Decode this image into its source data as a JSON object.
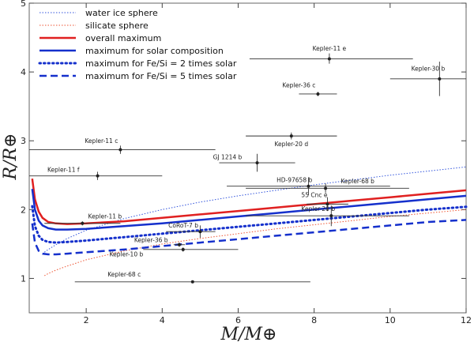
{
  "chart_data": {
    "type": "scatter",
    "title": "",
    "xlabel": "M/M⊕",
    "ylabel": "R/R⊕",
    "xlim": [
      0.5,
      12
    ],
    "ylim": [
      0.5,
      5
    ],
    "xticks": [
      2,
      4,
      6,
      8,
      10,
      12
    ],
    "yticks": [
      1,
      2,
      3,
      4,
      5
    ],
    "legend_position": "top-left",
    "legend": [
      {
        "label": "water ice sphere",
        "color": "#3355dd",
        "style": "dotted-thin",
        "width": 1
      },
      {
        "label": "silicate sphere",
        "color": "#ee5533",
        "style": "dotted-thin",
        "width": 1
      },
      {
        "label": "overall maximum",
        "color": "#e02020",
        "style": "solid",
        "width": 2.5
      },
      {
        "label": "maximum for solar composition",
        "color": "#1530cc",
        "style": "solid",
        "width": 2.5
      },
      {
        "label": "maximum for Fe/Si =  2 times solar",
        "color": "#1530cc",
        "style": "dotted-thick",
        "width": 3
      },
      {
        "label": "maximum for Fe/Si =  5 times solar",
        "color": "#1530cc",
        "style": "dashed",
        "width": 2.5
      }
    ],
    "series": [
      {
        "name": "water ice sphere",
        "x": [
          0.9,
          1.0,
          1.2,
          1.5,
          2,
          3,
          4,
          5,
          6,
          7,
          8,
          9,
          10,
          11,
          12
        ],
        "y": [
          1.38,
          1.42,
          1.49,
          1.58,
          1.7,
          1.87,
          2.0,
          2.11,
          2.2,
          2.28,
          2.36,
          2.43,
          2.5,
          2.56,
          2.62
        ]
      },
      {
        "name": "silicate sphere",
        "x": [
          0.9,
          1.0,
          1.2,
          1.5,
          2,
          3,
          4,
          5,
          6,
          7,
          8,
          9,
          10,
          11,
          12
        ],
        "y": [
          1.04,
          1.07,
          1.12,
          1.18,
          1.27,
          1.4,
          1.5,
          1.58,
          1.65,
          1.72,
          1.78,
          1.84,
          1.9,
          1.95,
          2.0
        ]
      },
      {
        "name": "overall maximum",
        "x": [
          0.58,
          0.65,
          0.75,
          0.85,
          1.0,
          1.2,
          1.5,
          2,
          3,
          4,
          5,
          6,
          7,
          8,
          9,
          10,
          11,
          12
        ],
        "y": [
          2.45,
          2.15,
          1.97,
          1.88,
          1.82,
          1.8,
          1.79,
          1.8,
          1.83,
          1.88,
          1.93,
          1.98,
          2.03,
          2.08,
          2.13,
          2.18,
          2.23,
          2.28
        ]
      },
      {
        "name": "maximum for solar composition",
        "x": [
          0.58,
          0.65,
          0.75,
          0.85,
          1.0,
          1.2,
          1.5,
          2,
          3,
          4,
          5,
          6,
          7,
          8,
          9,
          10,
          11,
          12
        ],
        "y": [
          2.3,
          2.0,
          1.84,
          1.77,
          1.73,
          1.71,
          1.71,
          1.72,
          1.76,
          1.8,
          1.85,
          1.9,
          1.95,
          2.0,
          2.05,
          2.1,
          2.15,
          2.2
        ]
      },
      {
        "name": "maximum for Fe/Si =  2 times solar",
        "x": [
          0.58,
          0.65,
          0.75,
          0.85,
          1.0,
          1.2,
          1.5,
          2,
          3,
          4,
          5,
          6,
          7,
          8,
          9,
          10,
          11,
          12
        ],
        "y": [
          2.05,
          1.76,
          1.62,
          1.56,
          1.53,
          1.52,
          1.53,
          1.55,
          1.6,
          1.65,
          1.7,
          1.75,
          1.8,
          1.85,
          1.9,
          1.95,
          2.0,
          2.04
        ]
      },
      {
        "name": "maximum for Fe/Si =  5 times solar",
        "x": [
          0.58,
          0.65,
          0.75,
          0.85,
          1.0,
          1.2,
          1.5,
          2,
          3,
          4,
          5,
          6,
          7,
          8,
          9,
          10,
          11,
          12
        ],
        "y": [
          1.8,
          1.52,
          1.4,
          1.36,
          1.35,
          1.35,
          1.36,
          1.38,
          1.42,
          1.47,
          1.52,
          1.57,
          1.62,
          1.67,
          1.72,
          1.77,
          1.82,
          1.85
        ]
      }
    ],
    "planets": [
      {
        "name": "Kepler-11 e",
        "m": 8.4,
        "r": 4.19,
        "xlo": 6.3,
        "xhi": 10.6,
        "ylo": 4.12,
        "yhi": 4.27,
        "lx": 8.4,
        "ly": 4.31,
        "anchor": "middle"
      },
      {
        "name": "Kepler-30 b",
        "m": 11.3,
        "r": 3.9,
        "xlo": 10.0,
        "xhi": 12.0,
        "ylo": 3.65,
        "yhi": 4.15,
        "lx": 11.0,
        "ly": 4.02,
        "anchor": "middle"
      },
      {
        "name": "Kepler-36 c",
        "m": 8.1,
        "r": 3.68,
        "xlo": 7.6,
        "xhi": 8.6,
        "ylo": 3.65,
        "yhi": 3.71,
        "lx": 7.6,
        "ly": 3.78,
        "anchor": "middle"
      },
      {
        "name": "Kepler-11 c",
        "m": 2.9,
        "r": 2.87,
        "xlo": 0.5,
        "xhi": 5.4,
        "ylo": 2.81,
        "yhi": 2.93,
        "lx": 2.4,
        "ly": 2.97,
        "anchor": "middle"
      },
      {
        "name": "Kepler-20 d",
        "m": 7.4,
        "r": 3.07,
        "xlo": 6.2,
        "xhi": 8.6,
        "ylo": 3.02,
        "yhi": 3.12,
        "lx": 7.4,
        "ly": 2.92,
        "anchor": "middle"
      },
      {
        "name": "GJ 1214 b",
        "m": 6.5,
        "r": 2.68,
        "xlo": 5.5,
        "xhi": 7.5,
        "ylo": 2.55,
        "yhi": 2.81,
        "lx": 6.1,
        "ly": 2.73,
        "anchor": "end"
      },
      {
        "name": "Kepler-11 f",
        "m": 2.3,
        "r": 2.49,
        "xlo": 0.5,
        "xhi": 4.0,
        "ylo": 2.43,
        "yhi": 2.55,
        "lx": 1.4,
        "ly": 2.55,
        "anchor": "middle"
      },
      {
        "name": "HD-97658 b",
        "m": 7.85,
        "r": 2.34,
        "xlo": 5.7,
        "xhi": 10.0,
        "ylo": 2.21,
        "yhi": 2.47,
        "lx": 7.95,
        "ly": 2.4,
        "anchor": "end"
      },
      {
        "name": "Kepler-68 b",
        "m": 8.3,
        "r": 2.31,
        "xlo": 6.2,
        "xhi": 10.5,
        "ylo": 2.24,
        "yhi": 2.38,
        "lx": 8.7,
        "ly": 2.38,
        "anchor": "start"
      },
      {
        "name": "55 Cnc e",
        "m": 8.35,
        "r": 2.08,
        "xlo": 7.8,
        "xhi": 8.9,
        "ylo": 1.98,
        "yhi": 2.18,
        "lx": 8.35,
        "ly": 2.18,
        "anchor": "end"
      },
      {
        "name": "Kepler-20 b",
        "m": 8.45,
        "r": 1.91,
        "xlo": 6.2,
        "xhi": 10.5,
        "ylo": 1.76,
        "yhi": 2.06,
        "lx": 8.55,
        "ly": 1.98,
        "anchor": "end"
      },
      {
        "name": "Kepler-11 b",
        "m": 1.9,
        "r": 1.8,
        "xlo": 0.9,
        "xhi": 2.9,
        "ylo": 1.77,
        "yhi": 1.83,
        "lx": 2.05,
        "ly": 1.87,
        "anchor": "start"
      },
      {
        "name": "CoRoT-7 b",
        "m": 5.0,
        "r": 1.68,
        "xlo": 4.1,
        "xhi": 5.4,
        "ylo": 1.59,
        "yhi": 1.77,
        "lx": 4.95,
        "ly": 1.74,
        "anchor": "end"
      },
      {
        "name": "Kepler-36 b",
        "m": 4.45,
        "r": 1.49,
        "xlo": 4.3,
        "xhi": 4.6,
        "ylo": 1.46,
        "yhi": 1.52,
        "lx": 4.15,
        "ly": 1.53,
        "anchor": "end"
      },
      {
        "name": "Kepler-10 b",
        "m": 4.55,
        "r": 1.42,
        "xlo": 3.5,
        "xhi": 6.0,
        "ylo": 1.39,
        "yhi": 1.45,
        "lx": 3.5,
        "ly": 1.32,
        "anchor": "end"
      },
      {
        "name": "Kepler-68 c",
        "m": 4.8,
        "r": 0.95,
        "xlo": 1.7,
        "xhi": 7.9,
        "ylo": 0.93,
        "yhi": 0.97,
        "lx": 3.0,
        "ly": 1.03,
        "anchor": "middle"
      }
    ]
  }
}
